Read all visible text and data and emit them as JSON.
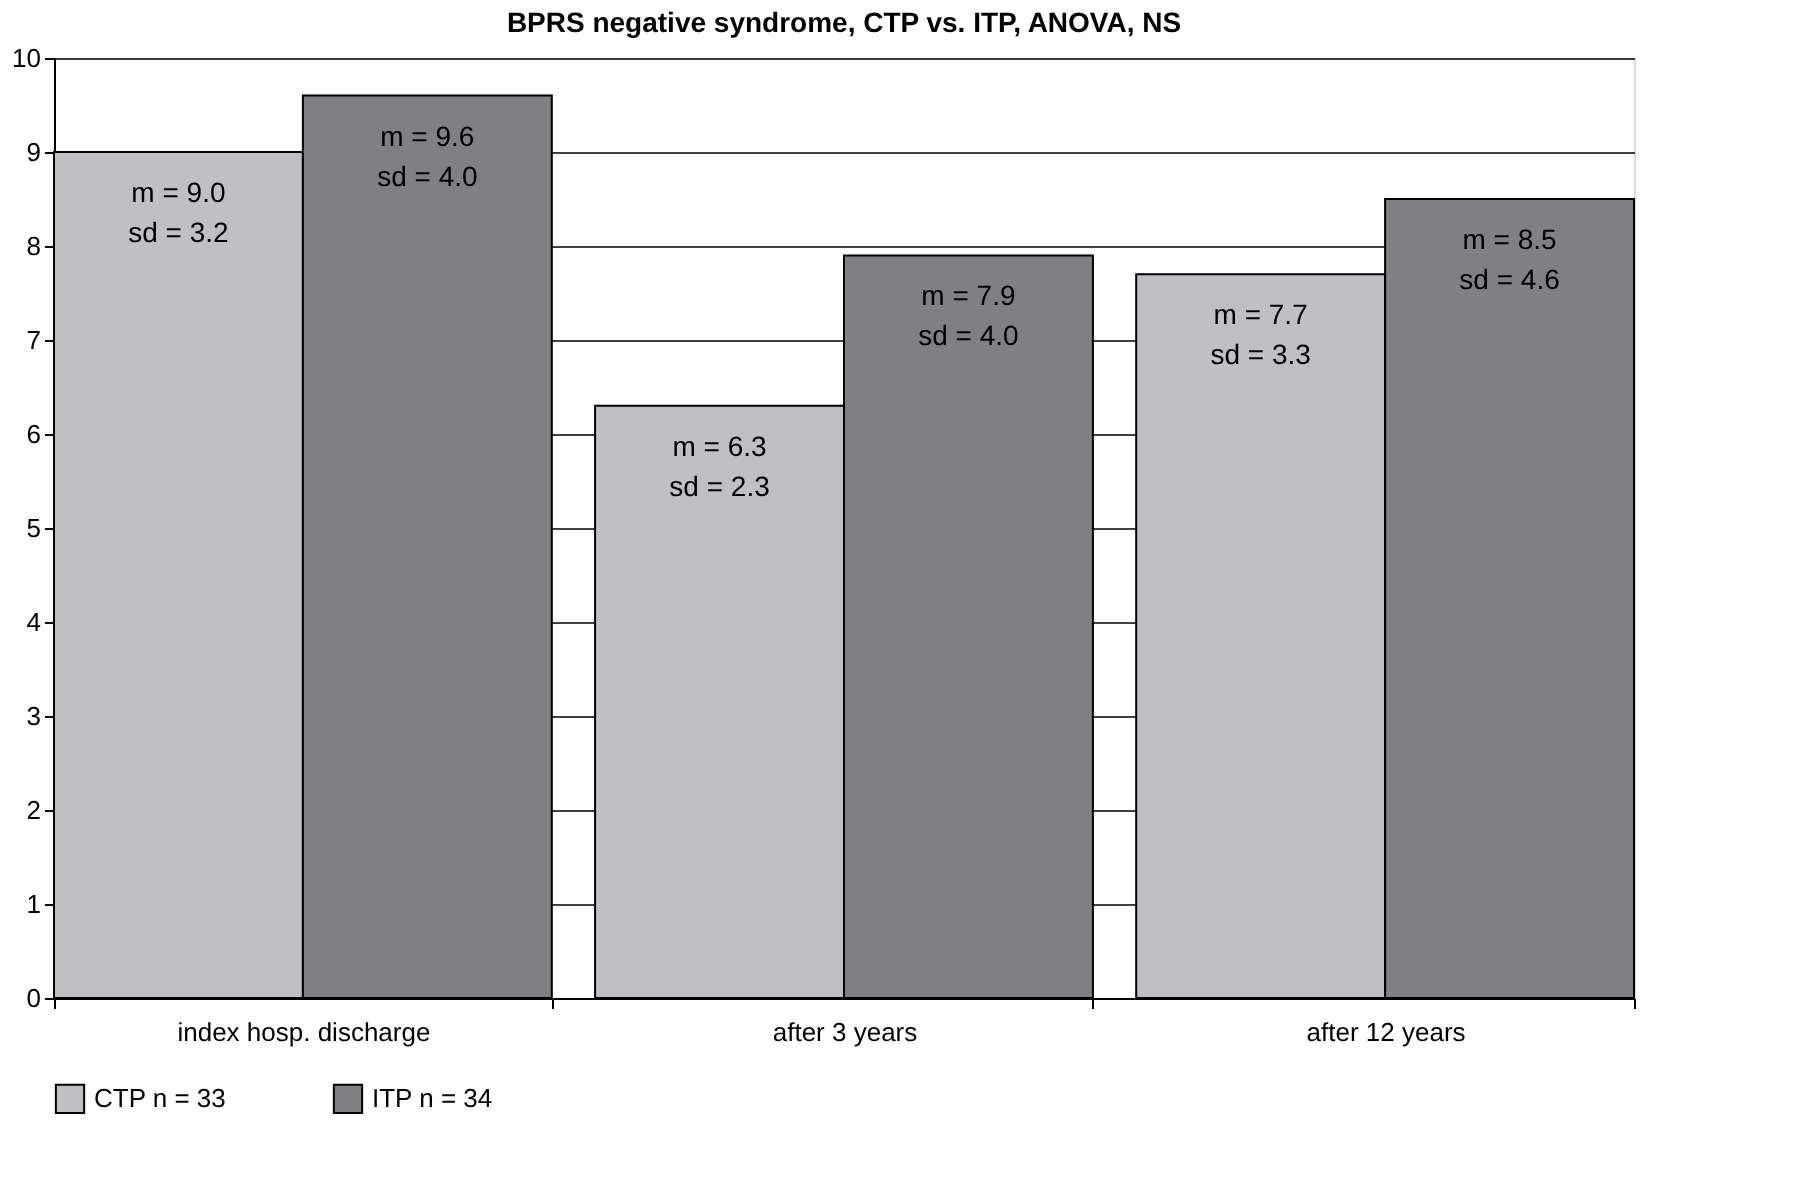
{
  "chart_data": {
    "type": "bar",
    "title": "BPRS negative syndrome, CTP vs. ITP, ANOVA, NS",
    "categories": [
      "index hosp. discharge",
      "after 3 years",
      "after 12 years"
    ],
    "series": [
      {
        "name": "CTP n = 33",
        "color": "#c0c0c4",
        "values": [
          9.0,
          6.3,
          7.7
        ],
        "value_labels": [
          "m = 9.0\nsd = 3.2",
          "m = 6.3\nsd = 2.3",
          "m = 7.7\nsd = 3.3"
        ]
      },
      {
        "name": "ITP n = 34",
        "color": "#7f7f84",
        "values": [
          9.6,
          7.9,
          8.5
        ],
        "value_labels": [
          "m = 9.6\nsd = 4.0",
          "m = 7.9\nsd = 4.0",
          "m = 8.5\nsd = 4.6"
        ]
      }
    ],
    "ylim": [
      0,
      10
    ],
    "yticks": [
      0,
      1,
      2,
      3,
      4,
      5,
      6,
      7,
      8,
      9,
      10
    ],
    "grid": "y",
    "legend": "bottom"
  }
}
